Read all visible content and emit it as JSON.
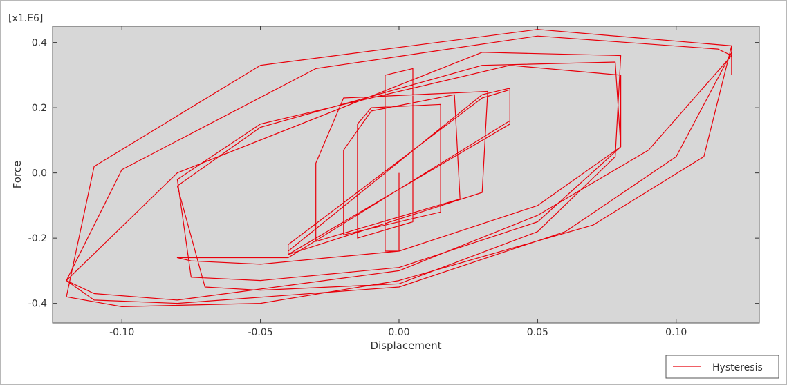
{
  "chart_data": {
    "type": "line",
    "title": "",
    "xlabel": "Displacement",
    "ylabel": "Force",
    "y_multiplier_label": "[x1.E6]",
    "xlim": [
      -0.125,
      0.13
    ],
    "ylim": [
      -0.46,
      0.45
    ],
    "x_ticks": [
      -0.1,
      -0.05,
      0.0,
      0.05,
      0.1
    ],
    "x_tick_labels": [
      "-0.10",
      "-0.05",
      "0.00",
      "0.05",
      "0.10"
    ],
    "y_ticks": [
      -0.4,
      -0.2,
      0.0,
      0.2,
      0.4
    ],
    "y_tick_labels": [
      "-0.4",
      "-0.2",
      "0.0",
      "0.2",
      "0.4"
    ],
    "grid": false,
    "plot_background": "#d7d7d7",
    "legend": {
      "position": "bottom-right",
      "entries": [
        "Hysteresis"
      ]
    },
    "series": [
      {
        "name": "Hysteresis",
        "color": "#e8000b",
        "x": [
          0.0,
          0.0,
          -0.005,
          -0.005,
          0.005,
          0.005,
          -0.015,
          -0.015,
          -0.01,
          0.015,
          0.015,
          -0.02,
          -0.02,
          -0.01,
          0.02,
          0.022,
          -0.03,
          -0.03,
          -0.02,
          0.032,
          0.03,
          -0.04,
          -0.04,
          0.03,
          0.04,
          0.04,
          -0.04,
          -0.04,
          0.03,
          0.04,
          0.04,
          -0.04,
          -0.08,
          -0.075,
          -0.05,
          0.0,
          0.05,
          0.08,
          0.08,
          0.04,
          -0.05,
          -0.08,
          -0.075,
          -0.05,
          0.0,
          0.05,
          0.08,
          0.078,
          0.03,
          -0.05,
          -0.08,
          -0.07,
          -0.05,
          0.0,
          0.05,
          0.078,
          0.08,
          0.03,
          -0.08,
          -0.12,
          -0.11,
          -0.08,
          0.0,
          0.05,
          0.09,
          0.12,
          0.115,
          0.05,
          -0.03,
          -0.1,
          -0.12,
          -0.11,
          -0.08,
          0.0,
          0.06,
          0.1,
          0.12,
          0.12,
          0.05,
          -0.05,
          -0.11,
          -0.12,
          -0.1,
          -0.05,
          0.0,
          0.07,
          0.11,
          0.12,
          0.12
        ],
        "y": [
          0.0,
          -0.24,
          -0.24,
          0.3,
          0.32,
          -0.15,
          -0.2,
          0.15,
          0.2,
          0.21,
          -0.12,
          -0.19,
          0.07,
          0.19,
          0.24,
          -0.08,
          -0.21,
          0.03,
          0.23,
          0.25,
          -0.06,
          -0.25,
          -0.22,
          0.23,
          0.255,
          0.15,
          -0.25,
          -0.24,
          0.24,
          0.26,
          0.16,
          -0.26,
          -0.26,
          -0.27,
          -0.28,
          -0.24,
          -0.1,
          0.08,
          0.3,
          0.33,
          0.15,
          -0.02,
          -0.32,
          -0.33,
          -0.29,
          -0.15,
          0.08,
          0.34,
          0.33,
          0.14,
          -0.04,
          -0.35,
          -0.36,
          -0.34,
          -0.18,
          0.05,
          0.36,
          0.37,
          0.0,
          -0.33,
          -0.37,
          -0.39,
          -0.3,
          -0.13,
          0.07,
          0.36,
          0.38,
          0.42,
          0.32,
          0.01,
          -0.33,
          -0.39,
          -0.4,
          -0.35,
          -0.18,
          0.05,
          0.37,
          0.39,
          0.44,
          0.33,
          0.02,
          -0.38,
          -0.41,
          -0.4,
          -0.33,
          -0.16,
          0.05,
          0.39,
          0.3
        ]
      }
    ]
  }
}
